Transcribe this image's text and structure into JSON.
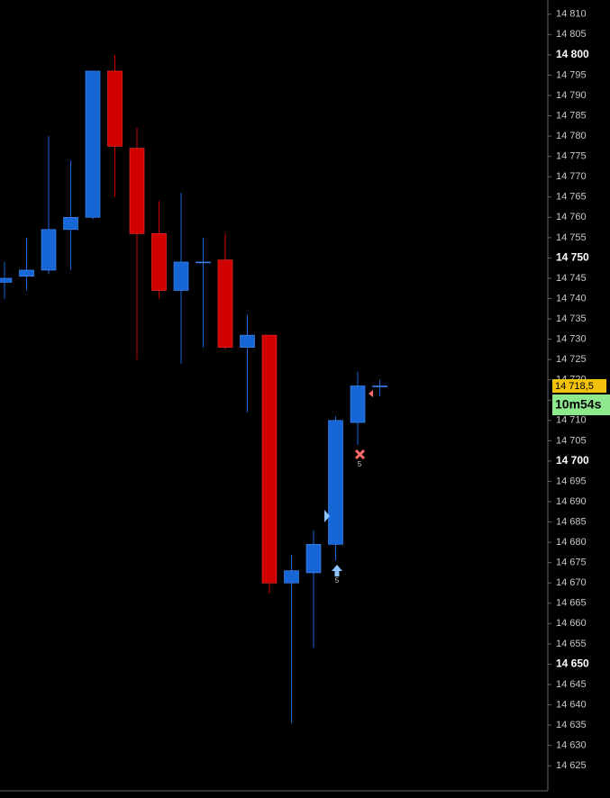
{
  "chart_data": {
    "type": "candlestick",
    "up_color": "#1766d6",
    "down_color": "#d00000",
    "open": [
      14744,
      14745.5,
      14747,
      14757,
      14760,
      14796,
      14777,
      14756,
      14742,
      14749,
      14749.5,
      14728,
      14731,
      14670,
      14672.5,
      14679.5,
      14709.5,
      14718.5
    ],
    "high": [
      14749,
      14755,
      14780,
      14774,
      14796,
      14800,
      14782,
      14764,
      14766,
      14755,
      14756,
      14736,
      14731,
      14677,
      14683,
      14711,
      14722,
      14720
    ],
    "low": [
      14740,
      14742,
      14746,
      14747,
      14759.5,
      14765,
      14725,
      14740,
      14724,
      14728,
      14727.5,
      14712,
      14667.5,
      14635.5,
      14654,
      14675.5,
      14704,
      14716
    ],
    "close": [
      14745,
      14747,
      14757,
      14760,
      14796,
      14777.5,
      14756,
      14742,
      14749,
      14749,
      14728,
      14731,
      14670,
      14673,
      14679.5,
      14710,
      14718.5,
      14718.5
    ],
    "ylim": [
      14619.5,
      14813.5
    ],
    "yticks": [
      {
        "value": 14810,
        "label": "14 810"
      },
      {
        "value": 14805,
        "label": "14 805"
      },
      {
        "value": 14800,
        "label": "14 800"
      },
      {
        "value": 14795,
        "label": "14 795"
      },
      {
        "value": 14790,
        "label": "14 790"
      },
      {
        "value": 14785,
        "label": "14 785"
      },
      {
        "value": 14780,
        "label": "14 780"
      },
      {
        "value": 14775,
        "label": "14 775"
      },
      {
        "value": 14770,
        "label": "14 770"
      },
      {
        "value": 14765,
        "label": "14 765"
      },
      {
        "value": 14760,
        "label": "14 760"
      },
      {
        "value": 14755,
        "label": "14 755"
      },
      {
        "value": 14750,
        "label": "14 750"
      },
      {
        "value": 14745,
        "label": "14 745"
      },
      {
        "value": 14740,
        "label": "14 740"
      },
      {
        "value": 14735,
        "label": "14 735"
      },
      {
        "value": 14730,
        "label": "14 730"
      },
      {
        "value": 14725,
        "label": "14 725"
      },
      {
        "value": 14720,
        "label": "14 720"
      },
      {
        "value": 14715,
        "label": "14 715"
      },
      {
        "value": 14710,
        "label": "14 710"
      },
      {
        "value": 14705,
        "label": "14 705"
      },
      {
        "value": 14700,
        "label": "14 700"
      },
      {
        "value": 14695,
        "label": "14 695"
      },
      {
        "value": 14690,
        "label": "14 690"
      },
      {
        "value": 14685,
        "label": "14 685"
      },
      {
        "value": 14680,
        "label": "14 680"
      },
      {
        "value": 14675,
        "label": "14 675"
      },
      {
        "value": 14670,
        "label": "14 670"
      },
      {
        "value": 14665,
        "label": "14 665"
      },
      {
        "value": 14660,
        "label": "14 660"
      },
      {
        "value": 14655,
        "label": "14 655"
      },
      {
        "value": 14650,
        "label": "14 650"
      },
      {
        "value": 14645,
        "label": "14 645"
      },
      {
        "value": 14640,
        "label": "14 640"
      },
      {
        "value": 14635,
        "label": "14 635"
      },
      {
        "value": 14630,
        "label": "14 630"
      },
      {
        "value": 14625,
        "label": "14 625"
      }
    ],
    "last_price": {
      "value": 14718.5,
      "label": "14 718,5"
    },
    "timer": "10m54s",
    "annotations": [
      "5",
      "5"
    ]
  }
}
